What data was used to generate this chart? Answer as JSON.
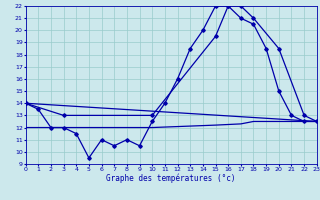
{
  "title": "Graphe des températures (°c)",
  "bg_color": "#cce8ec",
  "line_color": "#0000aa",
  "grid_color": "#99cccc",
  "xmin": 0,
  "xmax": 23,
  "ymin": 9,
  "ymax": 22,
  "series1_x": [
    0,
    1,
    2,
    3,
    4,
    5,
    6,
    7,
    8,
    9,
    10,
    11,
    12,
    13,
    14,
    15,
    16,
    17,
    18,
    19,
    20,
    21,
    22,
    23
  ],
  "series1_y": [
    14,
    13.5,
    12,
    12,
    11.5,
    9.5,
    11,
    10.5,
    11,
    10.5,
    12.5,
    14,
    16,
    18.5,
    20,
    22,
    22,
    21,
    20.5,
    18.5,
    15,
    13,
    12.5,
    12.5
  ],
  "series2_x": [
    0,
    3,
    10,
    15,
    16,
    17,
    18,
    20,
    22,
    23
  ],
  "series2_y": [
    14,
    13,
    13,
    19.5,
    22,
    22,
    21,
    18.5,
    13,
    12.5
  ],
  "series3_x": [
    0,
    23
  ],
  "series3_y": [
    14,
    12.5
  ],
  "series4_x": [
    0,
    10,
    15,
    17,
    18,
    23
  ],
  "series4_y": [
    12,
    12,
    12.2,
    12.3,
    12.5,
    12.5
  ],
  "marker": "D",
  "markersize": 1.8,
  "linewidth": 0.9,
  "tick_fontsize": 4.5,
  "xlabel_fontsize": 5.5
}
